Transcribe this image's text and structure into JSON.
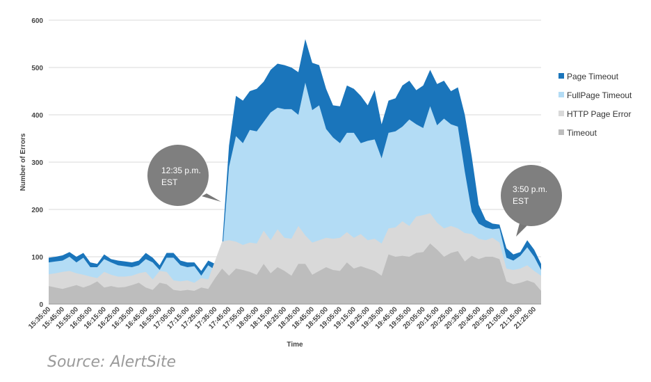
{
  "chart_data": {
    "type": "area",
    "stacked": true,
    "xlabel": "Time",
    "ylabel": "Number of Errors",
    "ylim": [
      0,
      600
    ],
    "yticks": [
      0,
      100,
      200,
      300,
      400,
      500,
      600
    ],
    "grid": true,
    "legend_position": "right",
    "x": [
      "15:35:00",
      "15:40:00",
      "15:45:00",
      "15:50:00",
      "15:55:00",
      "16:00:00",
      "16:05:00",
      "16:10:00",
      "16:15:00",
      "16:20:00",
      "16:25:00",
      "16:30:00",
      "16:35:00",
      "16:40:00",
      "16:45:00",
      "16:50:00",
      "16:55:00",
      "17:00:00",
      "17:05:00",
      "17:10:00",
      "17:15:00",
      "17:20:00",
      "17:25:00",
      "17:30:00",
      "17:35:00",
      "17:40:00",
      "17:45:00",
      "17:50:00",
      "17:55:00",
      "18:00:00",
      "18:05:00",
      "18:10:00",
      "18:15:00",
      "18:20:00",
      "18:25:00",
      "18:30:00",
      "18:35:00",
      "18:40:00",
      "18:45:00",
      "18:50:00",
      "18:55:00",
      "19:00:00",
      "19:05:00",
      "19:10:00",
      "19:15:00",
      "19:20:00",
      "19:25:00",
      "19:30:00",
      "19:35:00",
      "19:40:00",
      "19:45:00",
      "19:50:00",
      "19:55:00",
      "20:00:00",
      "20:05:00",
      "20:10:00",
      "20:15:00",
      "20:20:00",
      "20:25:00",
      "20:30:00",
      "20:35:00",
      "20:40:00",
      "20:45:00",
      "20:50:00",
      "20:55:00",
      "21:00:00",
      "21:05:00",
      "21:10:00",
      "21:15:00",
      "21:20:00",
      "21:25:00",
      "21:30:00"
    ],
    "x_tick_labels": [
      "15:35:00",
      "15:45:00",
      "15:55:00",
      "16:05:00",
      "16:15:00",
      "16:25:00",
      "16:35:00",
      "16:45:00",
      "16:55:00",
      "17:05:00",
      "17:15:00",
      "17:25:00",
      "17:35:00",
      "17:45:00",
      "17:55:00",
      "18:05:00",
      "18:15:00",
      "18:25:00",
      "18:35:00",
      "18:45:00",
      "18:55:00",
      "19:05:00",
      "19:15:00",
      "19:25:00",
      "19:35:00",
      "19:45:00",
      "19:55:00",
      "20:05:00",
      "20:15:00",
      "20:25:00",
      "20:35:00",
      "20:45:00",
      "20:55:00",
      "21:05:00",
      "21:15:00",
      "21:25:00"
    ],
    "totals": [
      {
        "name": "Timeout",
        "color": "#bdbdbd",
        "values": [
          38,
          35,
          32,
          36,
          40,
          35,
          40,
          48,
          35,
          38,
          35,
          36,
          40,
          45,
          35,
          30,
          45,
          42,
          30,
          28,
          30,
          28,
          35,
          32,
          55,
          75,
          60,
          75,
          72,
          68,
          62,
          85,
          65,
          78,
          70,
          60,
          85,
          85,
          62,
          70,
          78,
          72,
          70,
          88,
          75,
          80,
          75,
          70,
          60,
          105,
          100,
          102,
          100,
          108,
          110,
          128,
          115,
          100,
          108,
          112,
          90,
          102,
          95,
          100,
          100,
          95,
          48,
          42,
          45,
          50,
          45,
          28
        ]
      },
      {
        "name": "HTTP Page Error",
        "color": "#d9d9d9",
        "values": [
          63,
          65,
          68,
          70,
          65,
          62,
          58,
          55,
          68,
          62,
          58,
          58,
          60,
          65,
          68,
          52,
          70,
          68,
          50,
          48,
          50,
          45,
          55,
          52,
          92,
          132,
          135,
          132,
          125,
          130,
          128,
          155,
          135,
          158,
          140,
          138,
          165,
          145,
          130,
          135,
          140,
          138,
          140,
          152,
          140,
          148,
          135,
          138,
          128,
          160,
          162,
          175,
          165,
          185,
          188,
          192,
          172,
          160,
          165,
          160,
          150,
          148,
          138,
          135,
          140,
          130,
          75,
          72,
          75,
          82,
          70,
          60
        ]
      },
      {
        "name": "FullPage Timeout",
        "color": "#b3dcf5",
        "values": [
          88,
          90,
          92,
          100,
          88,
          98,
          78,
          78,
          95,
          88,
          82,
          80,
          78,
          82,
          95,
          88,
          72,
          98,
          98,
          82,
          78,
          80,
          60,
          82,
          72,
          102,
          290,
          355,
          340,
          368,
          365,
          385,
          405,
          415,
          412,
          412,
          400,
          468,
          410,
          420,
          370,
          352,
          340,
          362,
          362,
          340,
          345,
          348,
          308,
          362,
          365,
          375,
          390,
          380,
          372,
          418,
          378,
          392,
          380,
          375,
          280,
          195,
          170,
          162,
          158,
          160,
          98,
          92,
          102,
          120,
          100,
          72
        ]
      },
      {
        "name": "Page Timeout",
        "color": "#1a75bb",
        "values": [
          98,
          100,
          103,
          110,
          100,
          108,
          88,
          85,
          105,
          95,
          92,
          90,
          88,
          92,
          108,
          98,
          82,
          108,
          108,
          92,
          88,
          88,
          70,
          92,
          85,
          120,
          335,
          440,
          430,
          450,
          455,
          470,
          495,
          508,
          505,
          500,
          490,
          560,
          510,
          505,
          455,
          420,
          418,
          462,
          455,
          440,
          420,
          452,
          380,
          430,
          435,
          462,
          472,
          452,
          462,
          495,
          465,
          472,
          450,
          458,
          400,
          312,
          210,
          178,
          170,
          168,
          118,
          105,
          110,
          135,
          115,
          85
        ]
      }
    ]
  },
  "legend": [
    {
      "label": "Page Timeout",
      "color": "#1a75bb"
    },
    {
      "label": "FullPage Timeout",
      "color": "#b3dcf5"
    },
    {
      "label": "HTTP Page Error",
      "color": "#d9d9d9"
    },
    {
      "label": "Timeout",
      "color": "#bdbdbd"
    }
  ],
  "callouts": [
    {
      "line1": "12:35 p.m.",
      "line2": "EST"
    },
    {
      "line1": "3:50 p.m.",
      "line2": "EST"
    }
  ],
  "source": "Source: AlertSite"
}
